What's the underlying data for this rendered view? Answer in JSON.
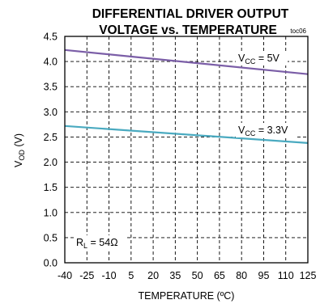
{
  "chart_data": {
    "type": "line",
    "title_line1": "DIFFERENTIAL DRIVER OUTPUT",
    "title_line2": "VOLTAGE vs. TEMPERATURE",
    "figure_tag": "toc06",
    "xlabel": "TEMPERATURE (ºC)",
    "ylabel": "V",
    "ylabel_sub": "OD",
    "ylabel_unit": " (V)",
    "xlim": [
      -40,
      125
    ],
    "ylim": [
      0,
      4.5
    ],
    "xticks": [
      -40,
      -25,
      -10,
      5,
      20,
      35,
      50,
      65,
      80,
      95,
      110,
      125
    ],
    "yticks": [
      0,
      0.5,
      1.0,
      1.5,
      2.0,
      2.5,
      3.0,
      3.5,
      4.0,
      4.5
    ],
    "ytick_labels": [
      "0.0",
      "0.5",
      "1.0",
      "1.5",
      "2.0",
      "2.5",
      "3.0",
      "3.5",
      "4.0",
      "4.5"
    ],
    "grid": true,
    "series": [
      {
        "label_main": "V",
        "label_sub": "CC",
        "label_rest": " = 5V",
        "color": "#7b5ea7",
        "x": [
          -40,
          125
        ],
        "y": [
          4.23,
          3.75
        ]
      },
      {
        "label_main": "V",
        "label_sub": "CC",
        "label_rest": " = 3.3V",
        "color": "#4aaac0",
        "x": [
          -40,
          125
        ],
        "y": [
          2.72,
          2.38
        ]
      }
    ],
    "annotation": {
      "main": "R",
      "sub": "L",
      "rest": " = 54Ω"
    }
  }
}
